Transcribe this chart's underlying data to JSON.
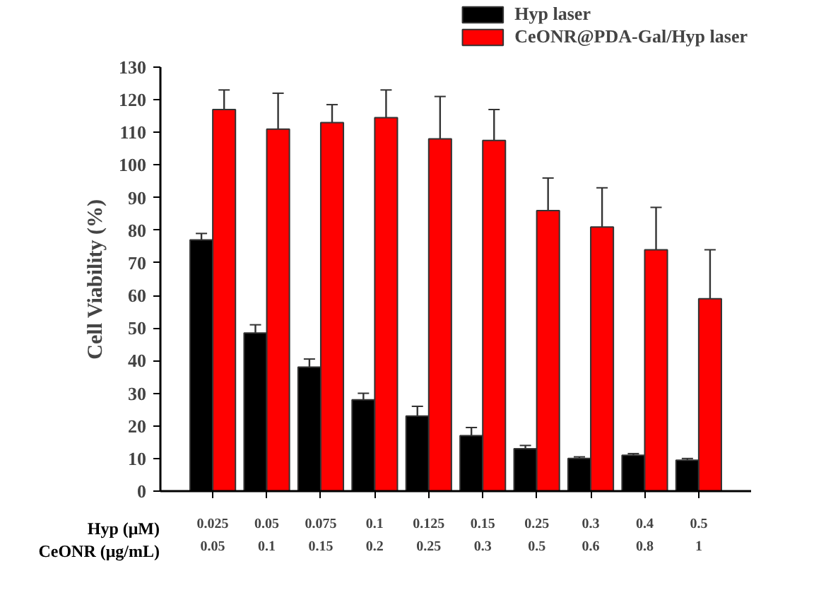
{
  "chart_data": {
    "type": "bar",
    "ylabel": "Cell Viability (%)",
    "categories": [
      "0.025\n0.05",
      "0.05\n0.1",
      "0.075\n0.15",
      "0.1\n0.2",
      "0.125\n0.25",
      "0.15\n0.3",
      "0.25\n0.5",
      "0.3\n0.6",
      "0.4\n0.8",
      "0.5\n1"
    ],
    "annotations": [
      "Hyp (μM)",
      "CeONR (μg/mL)"
    ],
    "series": [
      {
        "name": "Hyp laser",
        "color": "#000000",
        "values": [
          77,
          48.5,
          38,
          28,
          23,
          17,
          13,
          10,
          11,
          9.5
        ],
        "errors": [
          [
            77,
            79
          ],
          [
            48.5,
            51
          ],
          [
            38,
            40.5
          ],
          [
            28,
            30
          ],
          [
            23,
            26
          ],
          [
            17,
            19.5
          ],
          [
            13,
            14
          ],
          [
            10,
            10.5
          ],
          [
            11,
            11.5
          ],
          [
            9.5,
            10
          ]
        ]
      },
      {
        "name": "CeONR@PDA-Gal/Hyp laser",
        "color": "#ff0000",
        "values": [
          117,
          111,
          113,
          114.5,
          108,
          107.5,
          86,
          81,
          74,
          59
        ],
        "errors": [
          [
            117,
            123
          ],
          [
            111,
            122
          ],
          [
            113,
            118.5
          ],
          [
            114.5,
            123
          ],
          [
            108,
            121
          ],
          [
            107.5,
            117
          ],
          [
            86,
            96
          ],
          [
            81,
            93
          ],
          [
            74,
            87
          ],
          [
            59,
            74
          ]
        ]
      }
    ],
    "ylim": [
      0,
      130
    ],
    "yticks": [
      0,
      10,
      20,
      30,
      40,
      50,
      60,
      70,
      80,
      90,
      100,
      110,
      120,
      130
    ],
    "legend": "top right",
    "grid": false
  }
}
